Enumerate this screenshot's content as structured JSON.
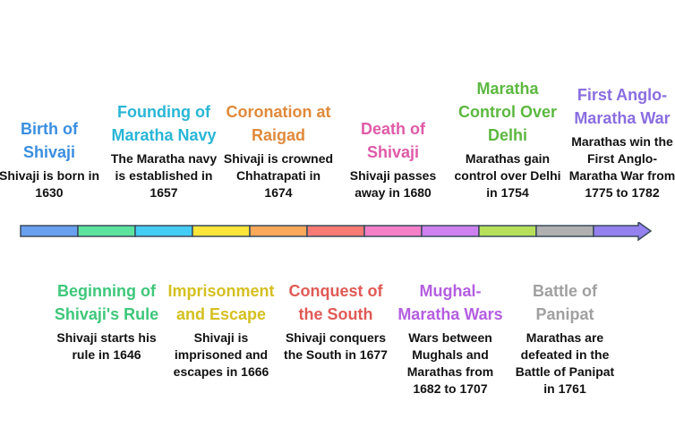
{
  "segment_colors": [
    "#6aa0f0",
    "#5ce39e",
    "#44cdf4",
    "#fde53a",
    "#fba85a",
    "#f77b72",
    "#f480c8",
    "#cf80f0",
    "#b6e05a",
    "#b0b0b0",
    "#9580f0"
  ],
  "events": [
    {
      "title": "Birth of Shivaji",
      "desc": "Shivaji is born in 1630",
      "color": "#3a8ee0",
      "pos": "top"
    },
    {
      "title": "Beginning of Shivaji's Rule",
      "desc": "Shivaji starts his rule in 1646",
      "color": "#3ec77a",
      "pos": "bottom"
    },
    {
      "title": "Founding of Maratha Navy",
      "desc": "The Maratha navy is established in 1657",
      "color": "#29b6d6",
      "pos": "top"
    },
    {
      "title": "Imprisonment and Escape",
      "desc": "Shivaji is imprisoned and escapes in 1666",
      "color": "#d4c020",
      "pos": "bottom"
    },
    {
      "title": "Coronation at Raigad",
      "desc": "Shivaji is crowned Chhatrapati in 1674",
      "color": "#e0893a",
      "pos": "top"
    },
    {
      "title": "Conquest of the South",
      "desc": "Shivaji conquers the South in 1677",
      "color": "#e05a55",
      "pos": "bottom"
    },
    {
      "title": "Death of Shivaji",
      "desc": "Shivaji passes away in 1680",
      "color": "#e05aa8",
      "pos": "top"
    },
    {
      "title": "Mughal-Maratha Wars",
      "desc": "Wars between Mughals and Marathas from 1682 to 1707",
      "color": "#b45ee0",
      "pos": "bottom"
    },
    {
      "title": "Maratha Control Over Delhi",
      "desc": "Marathas gain control over Delhi in 1754",
      "color": "#5cb840",
      "pos": "top"
    },
    {
      "title": "Battle of Panipat",
      "desc": "Marathas are defeated in the Battle of Panipat in 1761",
      "color": "#a0a0a0",
      "pos": "bottom"
    },
    {
      "title": "First Anglo-Maratha War",
      "desc": "Marathas win the First Anglo-Maratha War from 1775 to 1782",
      "color": "#8a6ee0",
      "pos": "top"
    }
  ]
}
